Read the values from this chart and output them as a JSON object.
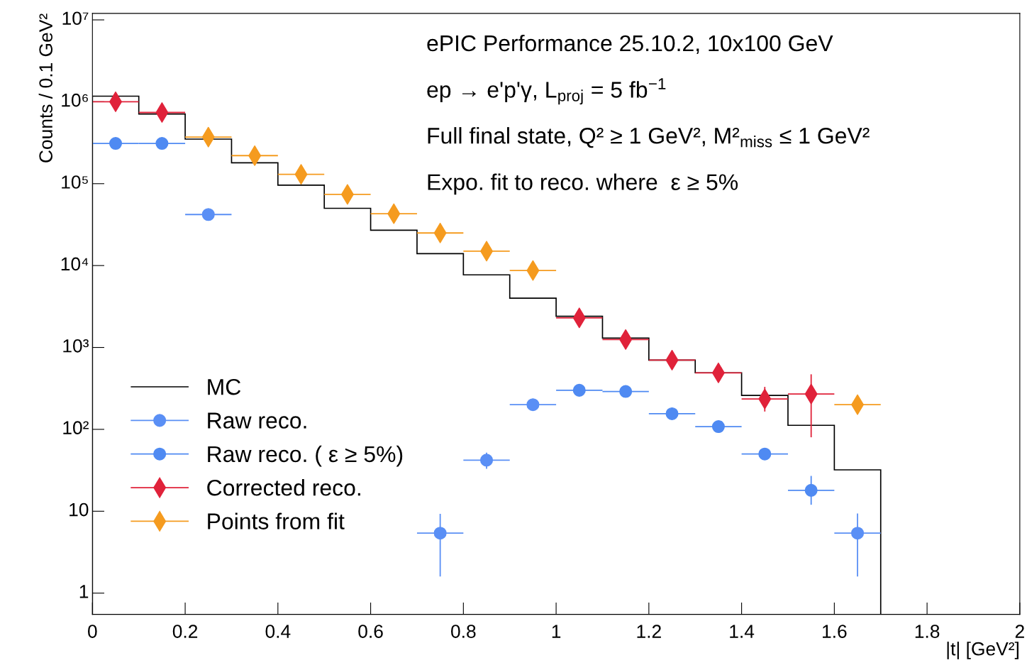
{
  "chart_data": {
    "type": "scatter",
    "annotations": [
      "ePIC Performance 25.10.2, 10x100 GeV",
      "ep → e'p'γ, L$_{proj}$ = 5 fb$^{−1}$",
      "Full final state, Q² ≥ 1 GeV², M²$_{miss}$ ≤ 1 GeV²",
      "Expo. fit to reco. where  ε ≥ 5%"
    ],
    "xlabel": "|t| [GeV²]",
    "ylabel": "Counts / 0.1 GeV²",
    "log": "y",
    "xlim": [
      0,
      2
    ],
    "ylim": [
      0.55,
      12000000
    ],
    "xticks": [
      0,
      0.2,
      0.4,
      0.6,
      0.8,
      1,
      1.2,
      1.4,
      1.6,
      1.8,
      2
    ],
    "yticks": [
      1,
      10,
      {
        "value": 100,
        "label": "10²"
      },
      {
        "value": 1000,
        "label": "10³"
      },
      {
        "value": 10000,
        "label": "10⁴"
      },
      {
        "value": 100000,
        "label": "10⁵"
      },
      {
        "value": 1000000,
        "label": "10⁶"
      },
      {
        "value": 10000000,
        "label": "10⁷"
      }
    ],
    "grid": false,
    "legend": "bottom left",
    "series": [
      {
        "name": "MC",
        "type": "histogram",
        "color": "#000000",
        "bins": [
          0,
          0.1,
          0.2,
          0.3,
          0.4,
          0.5,
          0.6,
          0.7,
          0.8,
          0.9,
          1.0,
          1.1,
          1.2,
          1.3,
          1.4,
          1.5,
          1.6,
          1.7
        ],
        "values": [
          1170000,
          710000,
          350000,
          180000,
          96000,
          50000,
          27000,
          14000,
          7700,
          4000,
          2400,
          1300,
          700,
          490,
          260,
          112,
          32
        ]
      },
      {
        "name": "Raw reco.",
        "color": "#5a8ff5",
        "marker": "circle",
        "x": [
          0.25,
          0.75,
          0.85,
          0.95,
          1.65
        ],
        "values": [
          42000,
          5.4,
          42,
          200,
          5.4
        ],
        "errors": [
          null,
          [
            1.6,
            9.3
          ],
          [
            33,
            52
          ],
          null,
          [
            1.6,
            9.4
          ]
        ],
        "xerrors": [
          0.05,
          0.05,
          0.05,
          0.05,
          0.05
        ]
      },
      {
        "name": "Raw reco. ( ε ≥ 5%)",
        "color": "#4f8af2",
        "marker": "circle",
        "x": [
          0.05,
          0.15,
          1.05,
          1.15,
          1.25,
          1.35,
          1.45,
          1.55
        ],
        "values": [
          310000,
          310000,
          300,
          290,
          155,
          108,
          50,
          18
        ],
        "errors": [
          null,
          null,
          null,
          null,
          null,
          null,
          null,
          [
            12,
            27
          ]
        ],
        "xerrors": [
          0.05,
          0.05,
          0.05,
          0.05,
          0.05,
          0.05,
          0.05,
          0.05
        ]
      },
      {
        "name": "Corrected reco.",
        "color": "#e0223a",
        "marker": "diamond",
        "x": [
          0.05,
          0.15,
          1.05,
          1.15,
          1.25,
          1.35,
          1.45,
          1.55
        ],
        "values": [
          1000000,
          740000,
          2300,
          1250,
          700,
          490,
          235,
          270
        ],
        "errors": [
          null,
          null,
          null,
          null,
          null,
          null,
          [
            165,
            330
          ],
          [
            80,
            470
          ]
        ],
        "xerrors": [
          0.05,
          0.05,
          0.05,
          0.05,
          0.05,
          0.05,
          0.05,
          0.05
        ]
      },
      {
        "name": "Points from fit",
        "color": "#f59b1f",
        "marker": "diamond",
        "x": [
          0.25,
          0.35,
          0.45,
          0.55,
          0.65,
          0.75,
          0.85,
          0.95,
          1.65
        ],
        "values": [
          370000,
          220000,
          130000,
          74000,
          43000,
          25000,
          15000,
          8700,
          200
        ],
        "xerrors": [
          0.05,
          0.05,
          0.05,
          0.05,
          0.05,
          0.05,
          0.05,
          0.05,
          0.05
        ]
      }
    ]
  }
}
